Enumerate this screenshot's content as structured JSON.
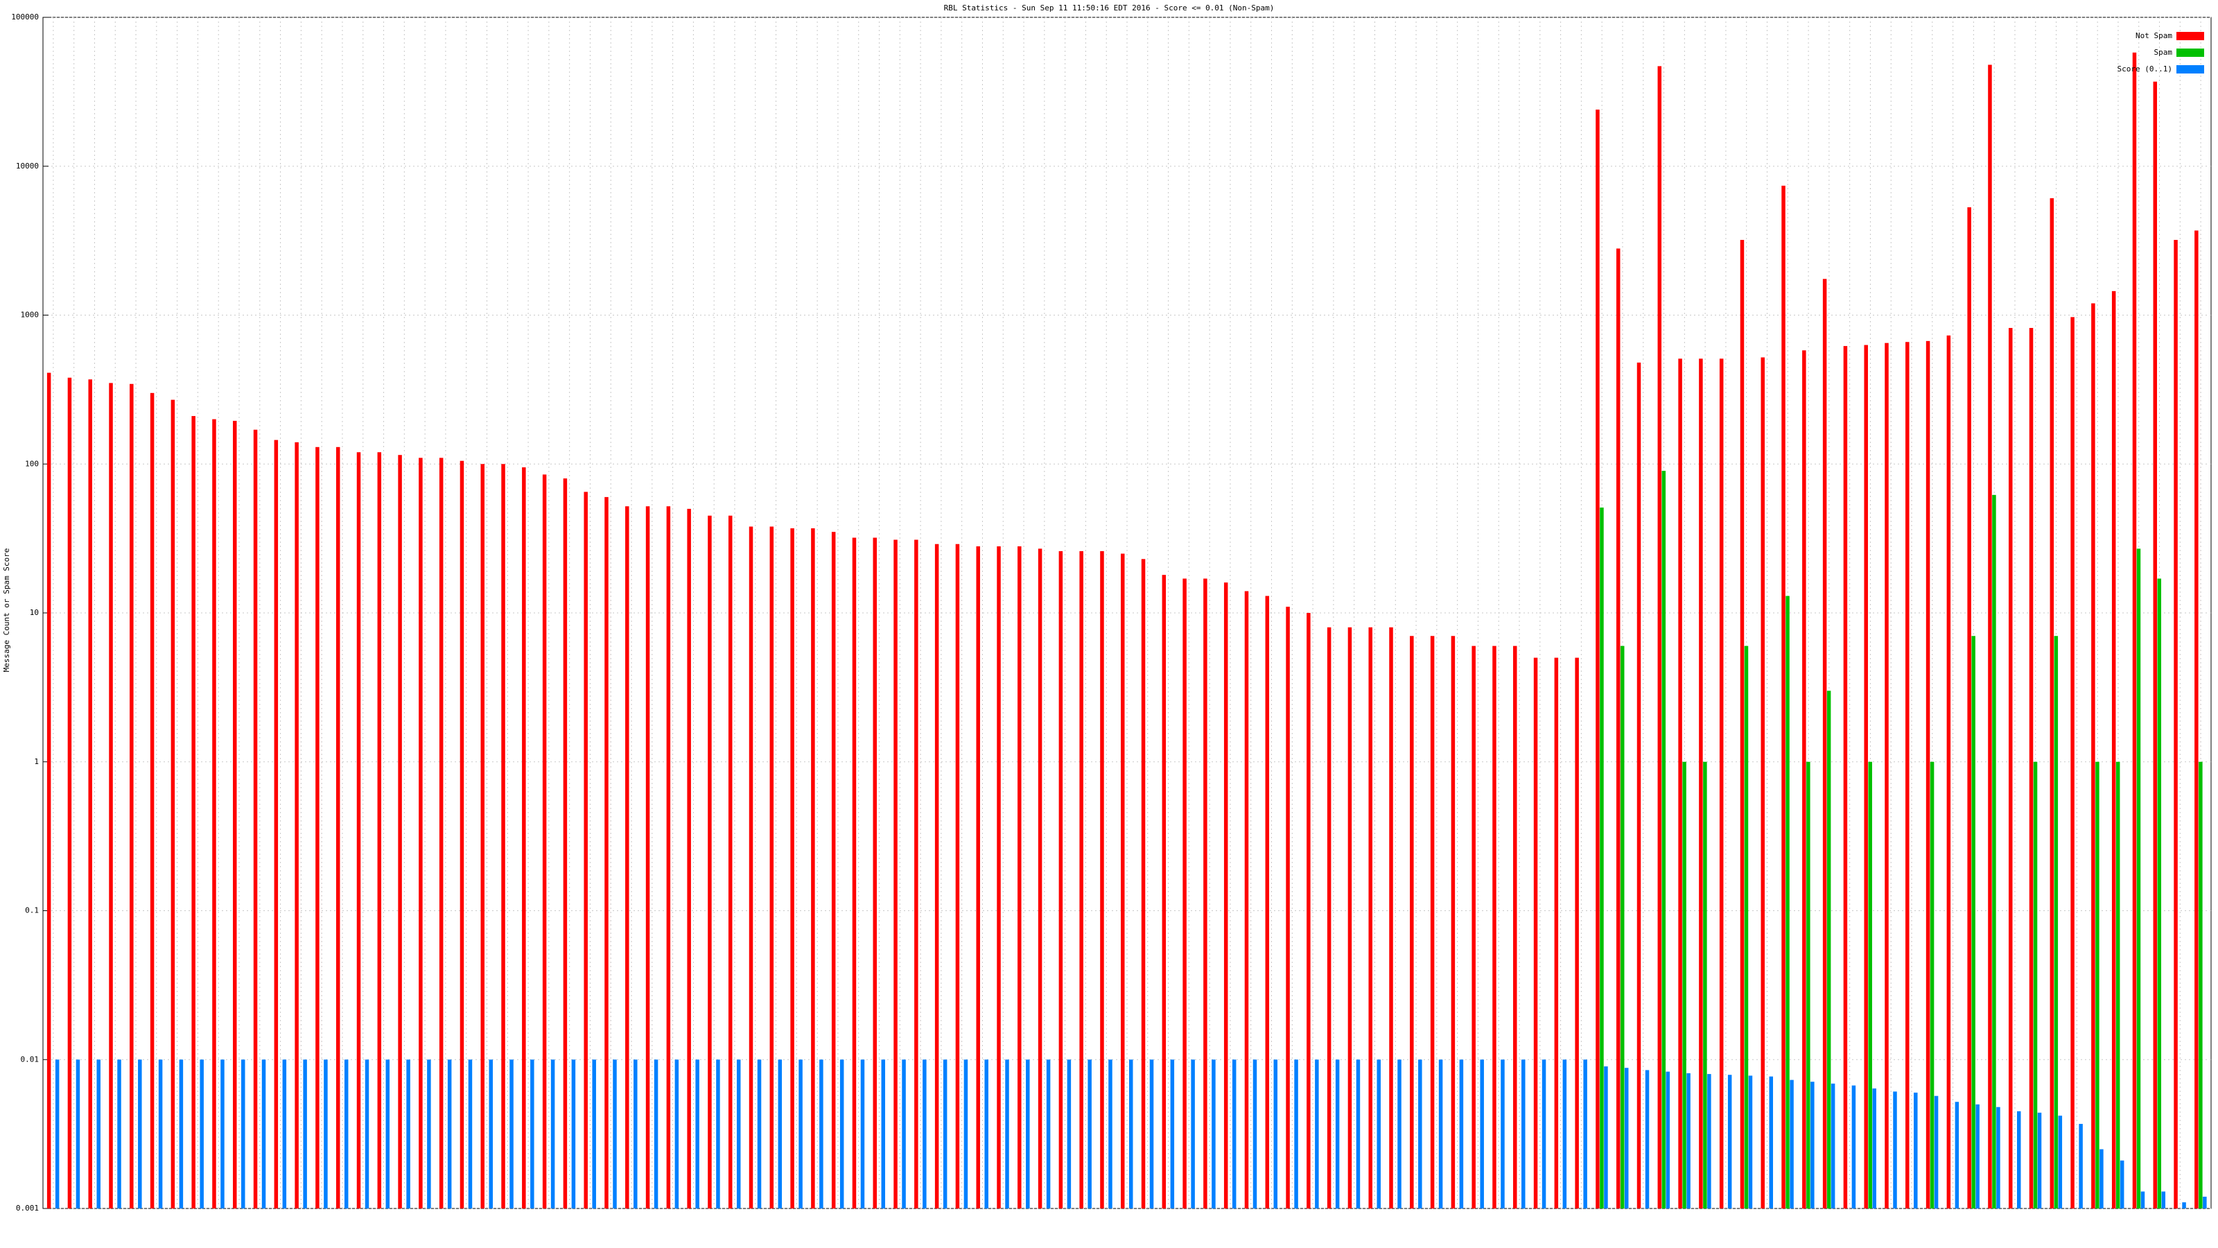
{
  "chart_data": {
    "type": "bar",
    "title": "RBL Statistics - Sun Sep 11 11:50:16 EDT 2016 - Score <= 0.01 (Non-Spam)",
    "y_label": "Message Count or Spam Score",
    "y_scale": "log",
    "grid": true,
    "legend": "top-right",
    "ylim": [
      0.001,
      100000
    ],
    "yticks": [
      0.001,
      0.01,
      0.1,
      1,
      10,
      100,
      1000,
      10000,
      100000
    ],
    "categories": [
      null,
      null,
      null,
      null,
      null,
      null,
      null,
      null,
      null,
      null,
      null,
      null,
      null,
      null,
      null,
      null,
      null,
      null,
      null,
      null,
      null,
      null,
      null,
      null,
      null,
      null,
      null,
      null,
      null,
      null,
      null,
      null,
      null,
      null,
      null,
      null,
      null,
      null,
      null,
      null,
      null,
      null,
      null,
      null,
      null,
      null,
      null,
      null,
      null,
      null,
      null,
      null,
      null,
      null,
      null,
      null,
      null,
      null,
      null,
      null,
      null,
      null,
      null,
      null,
      null,
      null,
      null,
      null,
      null,
      null,
      null,
      null,
      null,
      null,
      null,
      null,
      null,
      null,
      null,
      null,
      null,
      null,
      null,
      null,
      null,
      null,
      null,
      null,
      null,
      null,
      null,
      null,
      null,
      null,
      null,
      null,
      null,
      null,
      null,
      null,
      null,
      null,
      null,
      null,
      null
    ],
    "series": [
      {
        "name": "Not Spam",
        "color": "#ff0000",
        "values": [
          410,
          380,
          370,
          350,
          345,
          300,
          270,
          210,
          200,
          195,
          170,
          145,
          140,
          130,
          130,
          120,
          120,
          115,
          110,
          110,
          105,
          100,
          100,
          95,
          85,
          80,
          65,
          60,
          52,
          52,
          52,
          50,
          45,
          45,
          38,
          38,
          37,
          37,
          35,
          32,
          32,
          31,
          31,
          29,
          29,
          28,
          28,
          28,
          27,
          26,
          26,
          26,
          25,
          23,
          18,
          17,
          17,
          16,
          14,
          13,
          11,
          10,
          8,
          8,
          8,
          8,
          7,
          7,
          7,
          6,
          6,
          6,
          5,
          5,
          5,
          24000,
          2800,
          480,
          47000,
          510,
          510,
          510,
          3200,
          520,
          7400,
          580,
          1750,
          620,
          630,
          650,
          660,
          670,
          730,
          5300,
          48000,
          820,
          820,
          6100,
          970,
          1200,
          1450,
          58000,
          37000,
          3200,
          3700
        ]
      },
      {
        "name": "Spam",
        "color": "#00c000",
        "values": [
          0,
          0,
          0,
          0,
          0,
          0,
          0,
          0,
          0,
          0,
          0,
          0,
          0,
          0,
          0,
          0,
          0,
          0,
          0,
          0,
          0,
          0,
          0,
          0,
          0,
          0,
          0,
          0,
          0,
          0,
          0,
          0,
          0,
          0,
          0,
          0,
          0,
          0,
          0,
          0,
          0,
          0,
          0,
          0,
          0,
          0,
          0,
          0,
          0,
          0,
          0,
          0,
          0,
          0,
          0,
          0,
          0,
          0,
          0,
          0,
          0,
          0,
          0,
          0,
          0,
          0,
          0,
          0,
          0,
          0,
          0,
          0,
          0,
          0,
          0,
          51,
          6,
          0,
          90,
          1,
          1,
          0,
          6,
          0,
          13,
          1,
          3,
          0,
          1,
          0,
          0,
          1,
          0,
          7,
          62,
          0,
          1,
          7,
          0,
          1,
          1,
          27,
          17,
          0,
          1
        ]
      },
      {
        "name": "Score (0..1)",
        "color": "#0080ff",
        "values": [
          0.01,
          0.01,
          0.01,
          0.01,
          0.01,
          0.01,
          0.01,
          0.01,
          0.01,
          0.01,
          0.01,
          0.01,
          0.01,
          0.01,
          0.01,
          0.01,
          0.01,
          0.01,
          0.01,
          0.01,
          0.01,
          0.01,
          0.01,
          0.01,
          0.01,
          0.01,
          0.01,
          0.01,
          0.01,
          0.01,
          0.01,
          0.01,
          0.01,
          0.01,
          0.01,
          0.01,
          0.01,
          0.01,
          0.01,
          0.01,
          0.01,
          0.01,
          0.01,
          0.01,
          0.01,
          0.01,
          0.01,
          0.01,
          0.01,
          0.01,
          0.01,
          0.01,
          0.01,
          0.01,
          0.01,
          0.01,
          0.01,
          0.01,
          0.01,
          0.01,
          0.01,
          0.01,
          0.01,
          0.01,
          0.01,
          0.01,
          0.01,
          0.01,
          0.01,
          0.01,
          0.01,
          0.01,
          0.01,
          0.01,
          0.01,
          0.009,
          0.0088,
          0.0085,
          0.0083,
          0.0081,
          0.008,
          0.0079,
          0.0078,
          0.0077,
          0.0073,
          0.0071,
          0.0069,
          0.0067,
          0.0064,
          0.0061,
          0.006,
          0.0057,
          0.0052,
          0.005,
          0.0048,
          0.0045,
          0.0044,
          0.0042,
          0.0037,
          0.0025,
          0.0021,
          0.0013,
          0.0013,
          0.0011,
          0.0012
        ]
      }
    ]
  }
}
